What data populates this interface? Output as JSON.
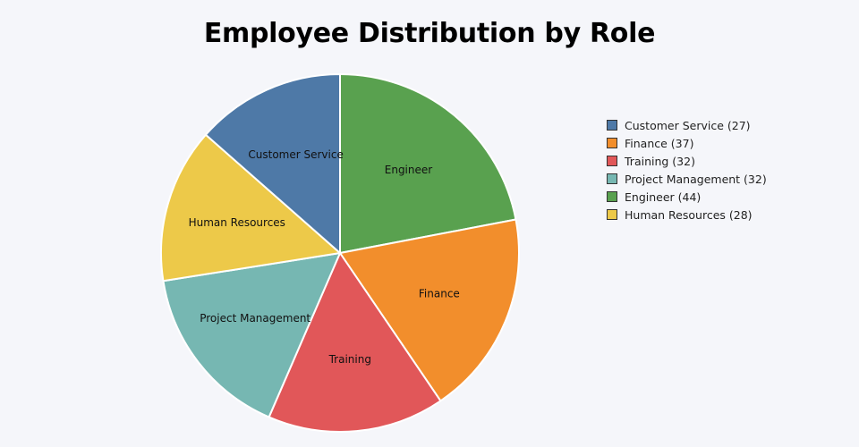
{
  "chart_data": {
    "type": "pie",
    "title": "Employee Distribution by Role",
    "slices": [
      {
        "label": "Customer Service",
        "value": 27,
        "color": "#4e79a7"
      },
      {
        "label": "Finance",
        "value": 37,
        "color": "#f28e2c"
      },
      {
        "label": "Training",
        "value": 32,
        "color": "#e15759"
      },
      {
        "label": "Project Management",
        "value": 32,
        "color": "#76b7b2"
      },
      {
        "label": "Engineer",
        "value": 44,
        "color": "#59a14f"
      },
      {
        "label": "Human Resources",
        "value": 28,
        "color": "#edc949"
      }
    ],
    "drawing_order": [
      "Engineer",
      "Finance",
      "Training",
      "Project Management",
      "Human Resources",
      "Customer Service"
    ],
    "start": "12 o'clock",
    "direction": "clockwise",
    "legend": {
      "position": "right",
      "entries": [
        "Customer Service (27)",
        "Finance (37)",
        "Training (32)",
        "Project Management (32)",
        "Engineer (44)",
        "Human Resources (28)"
      ]
    }
  }
}
